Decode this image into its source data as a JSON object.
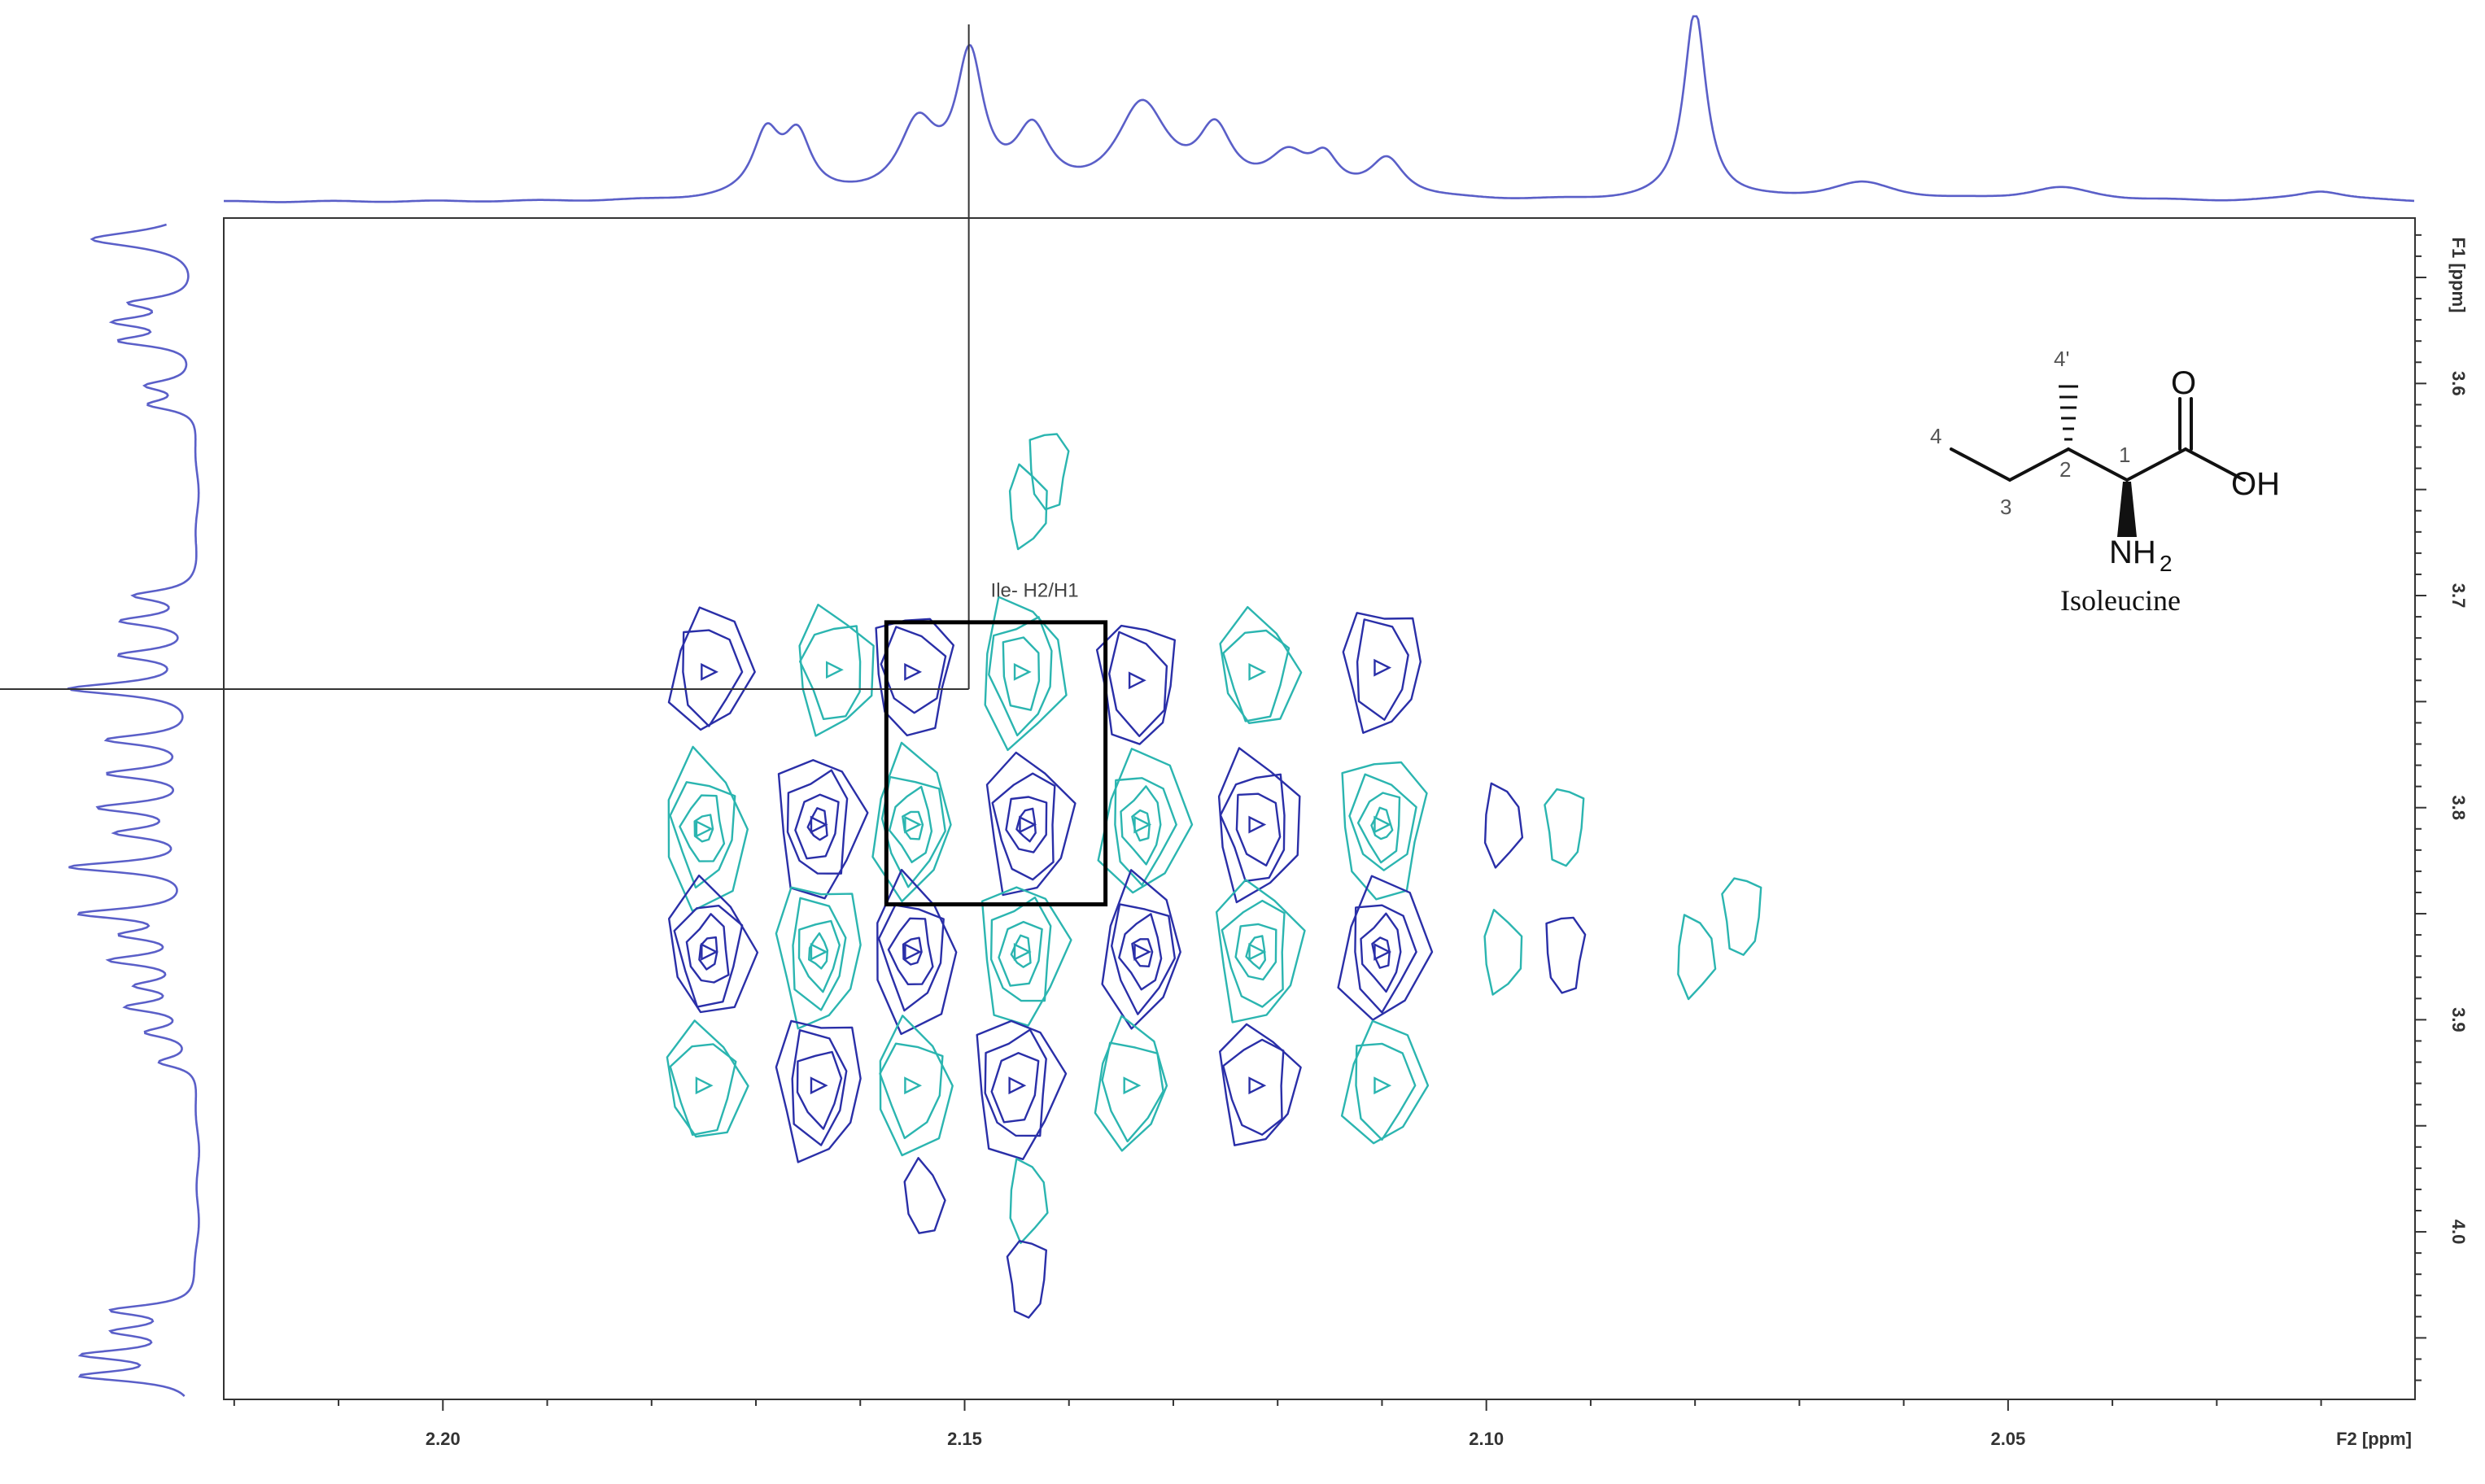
{
  "chart_data": {
    "type": "contour",
    "x_axis": {
      "label": "F2 [ppm]",
      "range": [
        2.221,
        2.011
      ],
      "reversed": true,
      "ticks": [
        2.2,
        2.15,
        2.1,
        2.05
      ],
      "tick_labels": [
        "2.20",
        "2.15",
        "2.10",
        "2.05"
      ]
    },
    "y_axis": {
      "label": "F1 [ppm]",
      "range": [
        3.522,
        4.079
      ],
      "reversed": true,
      "ticks": [
        3.6,
        3.7,
        3.8,
        3.9,
        4.0
      ],
      "tick_labels": [
        "3.6",
        "3.7",
        "3.8",
        "3.9",
        "4.0"
      ]
    },
    "cursor": {
      "x": 2.1496,
      "y": 3.7441
    },
    "highlight_box": {
      "x_range": [
        2.1575,
        2.1365
      ],
      "y_range": [
        3.7126,
        3.8456
      ]
    },
    "annotation": {
      "text": "Ile- H2/H1",
      "x": 2.1475,
      "y": 3.7006
    },
    "series_colors": {
      "negative": "#2a2fa8",
      "positive": "#2bb5b0"
    },
    "peaks": [
      {
        "x": 2.1745,
        "y": 3.736,
        "sign": "negative",
        "levels": 2
      },
      {
        "x": 2.1625,
        "y": 3.735,
        "sign": "positive",
        "levels": 2
      },
      {
        "x": 2.155,
        "y": 3.736,
        "sign": "negative",
        "levels": 2
      },
      {
        "x": 2.1445,
        "y": 3.736,
        "sign": "positive",
        "levels": 3
      },
      {
        "x": 2.1335,
        "y": 3.74,
        "sign": "negative",
        "levels": 2
      },
      {
        "x": 2.122,
        "y": 3.736,
        "sign": "positive",
        "levels": 2
      },
      {
        "x": 2.11,
        "y": 3.734,
        "sign": "negative",
        "levels": 2
      },
      {
        "x": 2.175,
        "y": 3.81,
        "sign": "positive",
        "levels": 4
      },
      {
        "x": 2.164,
        "y": 3.808,
        "sign": "negative",
        "levels": 4
      },
      {
        "x": 2.155,
        "y": 3.808,
        "sign": "positive",
        "levels": 4
      },
      {
        "x": 2.144,
        "y": 3.808,
        "sign": "negative",
        "levels": 4
      },
      {
        "x": 2.133,
        "y": 3.808,
        "sign": "positive",
        "levels": 4
      },
      {
        "x": 2.122,
        "y": 3.808,
        "sign": "negative",
        "levels": 3
      },
      {
        "x": 2.11,
        "y": 3.808,
        "sign": "positive",
        "levels": 4
      },
      {
        "x": 2.0985,
        "y": 3.808,
        "sign": "negative",
        "levels": 1
      },
      {
        "x": 2.0925,
        "y": 3.808,
        "sign": "positive",
        "levels": 1
      },
      {
        "x": 2.1745,
        "y": 3.868,
        "sign": "negative",
        "levels": 4
      },
      {
        "x": 2.164,
        "y": 3.868,
        "sign": "positive",
        "levels": 4
      },
      {
        "x": 2.155,
        "y": 3.868,
        "sign": "negative",
        "levels": 4
      },
      {
        "x": 2.1445,
        "y": 3.868,
        "sign": "positive",
        "levels": 4
      },
      {
        "x": 2.133,
        "y": 3.868,
        "sign": "negative",
        "levels": 4
      },
      {
        "x": 2.122,
        "y": 3.868,
        "sign": "positive",
        "levels": 4
      },
      {
        "x": 2.11,
        "y": 3.868,
        "sign": "negative",
        "levels": 4
      },
      {
        "x": 2.0985,
        "y": 3.868,
        "sign": "positive",
        "levels": 1
      },
      {
        "x": 2.0925,
        "y": 3.868,
        "sign": "negative",
        "levels": 1
      },
      {
        "x": 2.08,
        "y": 3.87,
        "sign": "positive",
        "levels": 1
      },
      {
        "x": 2.0755,
        "y": 3.85,
        "sign": "positive",
        "levels": 1
      },
      {
        "x": 2.175,
        "y": 3.931,
        "sign": "positive",
        "levels": 2
      },
      {
        "x": 2.164,
        "y": 3.931,
        "sign": "negative",
        "levels": 3
      },
      {
        "x": 2.155,
        "y": 3.931,
        "sign": "positive",
        "levels": 2
      },
      {
        "x": 2.145,
        "y": 3.931,
        "sign": "negative",
        "levels": 3
      },
      {
        "x": 2.134,
        "y": 3.931,
        "sign": "positive",
        "levels": 2
      },
      {
        "x": 2.122,
        "y": 3.931,
        "sign": "negative",
        "levels": 2
      },
      {
        "x": 2.11,
        "y": 3.931,
        "sign": "positive",
        "levels": 2
      },
      {
        "x": 2.144,
        "y": 3.658,
        "sign": "positive",
        "levels": 1
      },
      {
        "x": 2.142,
        "y": 3.64,
        "sign": "positive",
        "levels": 1
      },
      {
        "x": 2.144,
        "y": 3.985,
        "sign": "positive",
        "levels": 1
      },
      {
        "x": 2.144,
        "y": 4.021,
        "sign": "negative",
        "levels": 1
      },
      {
        "x": 2.154,
        "y": 3.985,
        "sign": "negative",
        "levels": 1
      }
    ],
    "f2_projection": {
      "baseline_y": 0.02,
      "peaks": [
        {
          "x": 2.169,
          "h": 0.42,
          "w": 0.0016
        },
        {
          "x": 2.166,
          "h": 0.4,
          "w": 0.0016
        },
        {
          "x": 2.1545,
          "h": 0.48,
          "w": 0.0022
        },
        {
          "x": 2.1495,
          "h": 0.92,
          "w": 0.0016
        },
        {
          "x": 2.1435,
          "h": 0.42,
          "w": 0.002
        },
        {
          "x": 2.133,
          "h": 0.62,
          "w": 0.003
        },
        {
          "x": 2.126,
          "h": 0.42,
          "w": 0.002
        },
        {
          "x": 2.119,
          "h": 0.26,
          "w": 0.0024
        },
        {
          "x": 2.1155,
          "h": 0.22,
          "w": 0.0016
        },
        {
          "x": 2.1095,
          "h": 0.26,
          "w": 0.002
        },
        {
          "x": 2.08,
          "h": 1.3,
          "w": 0.0013
        },
        {
          "x": 2.064,
          "h": 0.12,
          "w": 0.004
        },
        {
          "x": 2.045,
          "h": 0.09,
          "w": 0.004
        },
        {
          "x": 2.02,
          "h": 0.07,
          "w": 0.003
        }
      ]
    },
    "f1_projection": {
      "peaks": [
        {
          "y": 3.532,
          "h": 0.8,
          "w": 0.0045
        },
        {
          "y": 3.562,
          "h": 0.45,
          "w": 0.003
        },
        {
          "y": 3.571,
          "h": 0.55,
          "w": 0.003
        },
        {
          "y": 3.58,
          "h": 0.55,
          "w": 0.003
        },
        {
          "y": 3.601,
          "h": 0.35,
          "w": 0.003
        },
        {
          "y": 3.61,
          "h": 0.35,
          "w": 0.003
        },
        {
          "y": 3.7,
          "h": 0.45,
          "w": 0.003
        },
        {
          "y": 3.712,
          "h": 0.55,
          "w": 0.003
        },
        {
          "y": 3.728,
          "h": 0.55,
          "w": 0.003
        },
        {
          "y": 3.744,
          "h": 0.95,
          "w": 0.0035
        },
        {
          "y": 3.768,
          "h": 0.65,
          "w": 0.003
        },
        {
          "y": 3.784,
          "h": 0.65,
          "w": 0.003
        },
        {
          "y": 3.8,
          "h": 0.7,
          "w": 0.003
        },
        {
          "y": 3.812,
          "h": 0.55,
          "w": 0.003
        },
        {
          "y": 3.828,
          "h": 0.95,
          "w": 0.003
        },
        {
          "y": 3.85,
          "h": 0.85,
          "w": 0.003
        },
        {
          "y": 3.86,
          "h": 0.5,
          "w": 0.003
        },
        {
          "y": 3.872,
          "h": 0.6,
          "w": 0.003
        },
        {
          "y": 3.884,
          "h": 0.4,
          "w": 0.003
        },
        {
          "y": 3.894,
          "h": 0.5,
          "w": 0.003
        },
        {
          "y": 3.906,
          "h": 0.35,
          "w": 0.003
        },
        {
          "y": 3.92,
          "h": 0.28,
          "w": 0.003
        },
        {
          "y": 4.037,
          "h": 0.62,
          "w": 0.003
        },
        {
          "y": 4.047,
          "h": 0.55,
          "w": 0.003
        },
        {
          "y": 4.058,
          "h": 0.8,
          "w": 0.003
        },
        {
          "y": 4.068,
          "h": 0.85,
          "w": 0.003
        }
      ]
    },
    "projection_color": "#5a5fc8"
  },
  "molecule": {
    "name": "Isoleucine",
    "atoms": [
      "O",
      "OH",
      "NH",
      "2"
    ],
    "numbers": [
      "4",
      "4'",
      "3",
      "2",
      "1"
    ]
  }
}
